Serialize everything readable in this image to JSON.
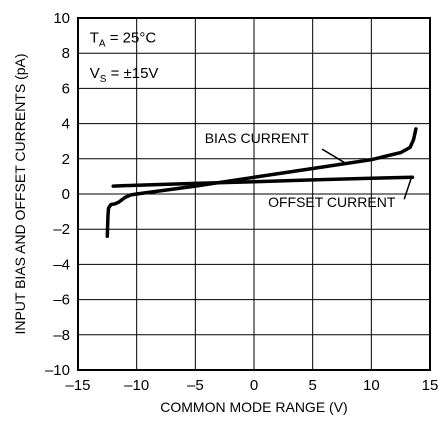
{
  "chart_data": {
    "type": "line",
    "title": "",
    "xlabel": "COMMON MODE RANGE (V)",
    "ylabel": "INPUT BIAS AND OFFSET CURRENTS (pA)",
    "xlim": [
      -15,
      15
    ],
    "ylim": [
      -10,
      10
    ],
    "x_ticks": [
      -15,
      -10,
      -5,
      0,
      5,
      10,
      15
    ],
    "x_tick_labels": [
      "–15",
      "–10",
      "–5",
      "0",
      "5",
      "10",
      "15"
    ],
    "y_ticks": [
      -10,
      -8,
      -6,
      -4,
      -2,
      0,
      2,
      4,
      6,
      8,
      10
    ],
    "y_tick_labels": [
      "–10",
      "–8",
      "–6",
      "–4",
      "–2",
      "0",
      "2",
      "4",
      "6",
      "8",
      "10"
    ],
    "grid": true,
    "conditions": {
      "ta_main": "T",
      "ta_sub": "A",
      "ta_value": " = 25°C",
      "vs_main": "V",
      "vs_sub": "S",
      "vs_value": " = ±15V"
    },
    "series": [
      {
        "name": "BIAS CURRENT",
        "color": "#000000",
        "x": [
          -12.5,
          -12.45,
          -12.4,
          -12.2,
          -11.8,
          -11.5,
          -11.0,
          -10.5,
          -10.0,
          -5,
          0,
          5,
          10,
          12.5,
          13.3,
          13.6,
          13.8
        ],
        "y": [
          -2.4,
          -1.3,
          -0.8,
          -0.6,
          -0.55,
          -0.45,
          -0.2,
          -0.05,
          0.0,
          0.45,
          0.95,
          1.45,
          1.95,
          2.35,
          2.65,
          3.1,
          3.7
        ]
      },
      {
        "name": "OFFSET CURRENT",
        "color": "#000000",
        "x": [
          -12.0,
          -10,
          -5,
          0,
          5,
          10,
          13.5
        ],
        "y": [
          0.45,
          0.5,
          0.6,
          0.7,
          0.8,
          0.9,
          0.95
        ]
      }
    ]
  }
}
